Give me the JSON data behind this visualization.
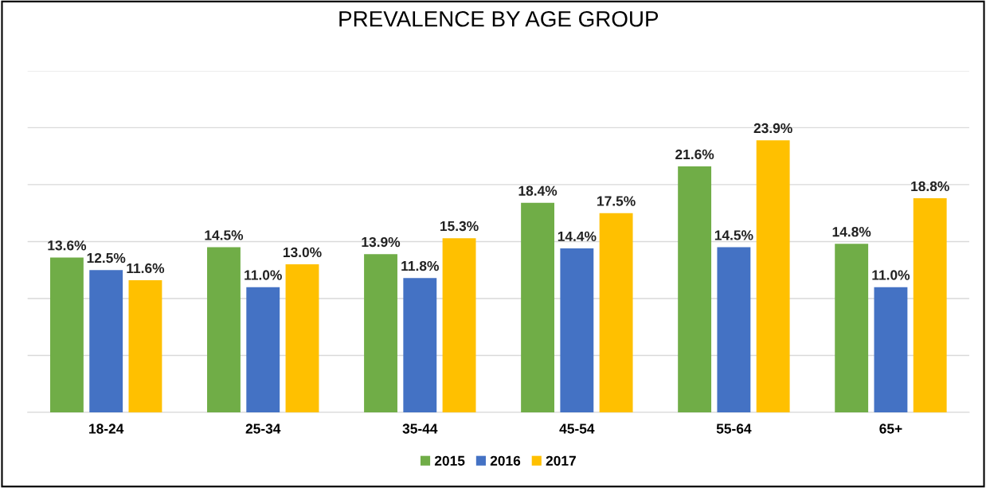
{
  "chart_data": {
    "type": "bar",
    "title": "PREVALENCE BY AGE GROUP",
    "categories": [
      "18-24",
      "25-34",
      "35-44",
      "45-54",
      "55-64",
      "65+"
    ],
    "series": [
      {
        "name": "2015",
        "color": "#70ad47",
        "values": [
          13.6,
          14.5,
          13.9,
          18.4,
          21.6,
          14.8
        ],
        "value_labels": [
          "13.6%",
          "14.5%",
          "13.9%",
          "18.4%",
          "21.6%",
          "14.8%"
        ]
      },
      {
        "name": "2016",
        "color": "#4472c4",
        "values": [
          12.5,
          11.0,
          11.8,
          14.4,
          14.5,
          11.0
        ],
        "value_labels": [
          "12.5%",
          "11.0%",
          "11.8%",
          "14.4%",
          "14.5%",
          "11.0%"
        ]
      },
      {
        "name": "2017",
        "color": "#ffc000",
        "values": [
          11.6,
          13.0,
          15.3,
          17.5,
          23.9,
          18.8
        ],
        "value_labels": [
          "11.6%",
          "13.0%",
          "15.3%",
          "17.5%",
          "23.9%",
          "18.8%"
        ]
      }
    ],
    "ylim": [
      0,
      30
    ],
    "yticks": [
      {
        "value": 0,
        "label": null
      },
      {
        "value": 5,
        "label": null
      },
      {
        "value": 10,
        "label": null
      },
      {
        "value": 15,
        "label": null
      },
      {
        "value": 20,
        "label": null
      },
      {
        "value": 25,
        "label": null
      },
      {
        "value": 30,
        "label": null
      }
    ],
    "tick_labels": "x",
    "grid": "y",
    "legend": "bottom"
  }
}
